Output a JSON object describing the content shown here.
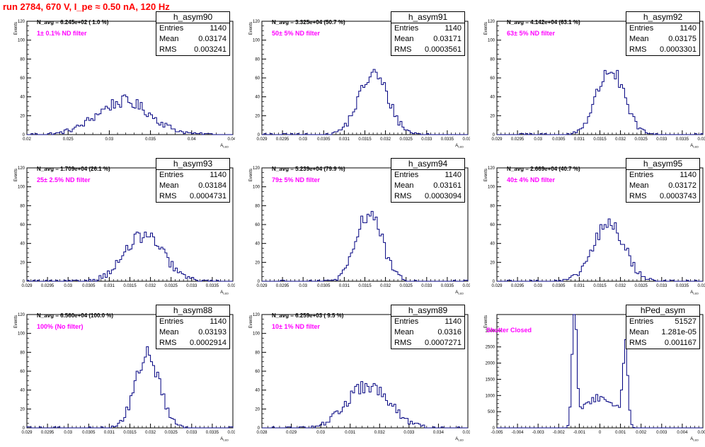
{
  "header": {
    "title": "run 2784,   670 V, I_pe ≈ 0.50 nA, 120 Hz"
  },
  "chart_data": [
    {
      "type": "histogram",
      "title": "h_asym90",
      "ylabel": "Events",
      "xlabel": "A",
      "xlabel_sub": "LED",
      "annotation": "N_avg = 6.245e+02 ( 1.0 %)",
      "filter_label": "1± 0.1% ND filter",
      "stats": {
        "entries_label": "Entries",
        "entries": "1140",
        "mean_label": "Mean",
        "mean": "0.03174",
        "rms_label": "RMS",
        "rms": "0.003241"
      },
      "xlim": [
        0.02,
        0.045
      ],
      "ylim": [
        0,
        120
      ],
      "xticks": [
        "0.02",
        "0.025",
        "0.03",
        "0.035",
        "0.04",
        "0.045"
      ],
      "yticks": [
        "0",
        "20",
        "40",
        "60",
        "80",
        "100",
        "120"
      ],
      "hist": {
        "mean": 0.03174,
        "rms": 0.003241,
        "entries": 1140,
        "nbins": 100
      }
    },
    {
      "type": "histogram",
      "title": "h_asym91",
      "ylabel": "Events",
      "xlabel": "A",
      "xlabel_sub": "LED",
      "annotation": "N_avg = 3.325e+04 (50.7 %)",
      "filter_label": "50± 5% ND filter",
      "stats": {
        "entries_label": "Entries",
        "entries": "1140",
        "mean_label": "Mean",
        "mean": "0.03171",
        "rms_label": "RMS",
        "rms": "0.0003561"
      },
      "xlim": [
        0.029,
        0.034
      ],
      "ylim": [
        0,
        120
      ],
      "xticks": [
        "0.029",
        "0.0295",
        "0.03",
        "0.0305",
        "0.031",
        "0.0315",
        "0.032",
        "0.0325",
        "0.033",
        "0.0335",
        "0.034"
      ],
      "yticks": [
        "0",
        "20",
        "40",
        "60",
        "80",
        "100",
        "120"
      ],
      "hist": {
        "mean": 0.03171,
        "rms": 0.0003561,
        "entries": 1140,
        "nbins": 100
      }
    },
    {
      "type": "histogram",
      "title": "h_asym92",
      "ylabel": "Events",
      "xlabel": "A",
      "xlabel_sub": "LED",
      "annotation": "N_avg = 4.142e+04 (63.1 %)",
      "filter_label": "63± 5% ND filter",
      "stats": {
        "entries_label": "Entries",
        "entries": "1140",
        "mean_label": "Mean",
        "mean": "0.03175",
        "rms_label": "RMS",
        "rms": "0.0003301"
      },
      "xlim": [
        0.029,
        0.034
      ],
      "ylim": [
        0,
        120
      ],
      "xticks": [
        "0.029",
        "0.0295",
        "0.03",
        "0.0305",
        "0.031",
        "0.0315",
        "0.032",
        "0.0325",
        "0.033",
        "0.0335",
        "0.034"
      ],
      "yticks": [
        "0",
        "20",
        "40",
        "60",
        "80",
        "100",
        "120"
      ],
      "hist": {
        "mean": 0.03175,
        "rms": 0.0003301,
        "entries": 1140,
        "nbins": 100
      }
    },
    {
      "type": "histogram",
      "title": "h_asym93",
      "ylabel": "Events",
      "xlabel": "A",
      "xlabel_sub": "LED",
      "annotation": "N_avg = 1.709e+04 (26.1 %)",
      "filter_label": "25± 2.5% ND filter",
      "stats": {
        "entries_label": "Entries",
        "entries": "1140",
        "mean_label": "Mean",
        "mean": "0.03184",
        "rms_label": "RMS",
        "rms": "0.0004731"
      },
      "xlim": [
        0.029,
        0.034
      ],
      "ylim": [
        0,
        120
      ],
      "xticks": [
        "0.029",
        "0.0295",
        "0.03",
        "0.0305",
        "0.031",
        "0.0315",
        "0.032",
        "0.0325",
        "0.033",
        "0.0335",
        "0.034"
      ],
      "yticks": [
        "0",
        "20",
        "40",
        "60",
        "80",
        "100",
        "120"
      ],
      "hist": {
        "mean": 0.03184,
        "rms": 0.0004731,
        "entries": 1140,
        "nbins": 100
      }
    },
    {
      "type": "histogram",
      "title": "h_asym94",
      "ylabel": "Events",
      "xlabel": "A",
      "xlabel_sub": "LED",
      "annotation": "N_avg = 5.239e+04 (79.9 %)",
      "filter_label": "79± 5% ND filter",
      "stats": {
        "entries_label": "Entries",
        "entries": "1140",
        "mean_label": "Mean",
        "mean": "0.03161",
        "rms_label": "RMS",
        "rms": "0.0003094"
      },
      "xlim": [
        0.029,
        0.034
      ],
      "ylim": [
        0,
        120
      ],
      "xticks": [
        "0.029",
        "0.0295",
        "0.03",
        "0.0305",
        "0.031",
        "0.0315",
        "0.032",
        "0.0325",
        "0.033",
        "0.0335",
        "0.034"
      ],
      "yticks": [
        "0",
        "20",
        "40",
        "60",
        "80",
        "100",
        "120"
      ],
      "hist": {
        "mean": 0.03161,
        "rms": 0.0003094,
        "entries": 1140,
        "nbins": 100
      }
    },
    {
      "type": "histogram",
      "title": "h_asym95",
      "ylabel": "Events",
      "xlabel": "A",
      "xlabel_sub": "LED",
      "annotation": "N_avg = 2.669e+04 (40.7 %)",
      "filter_label": "40± 4% ND filter",
      "stats": {
        "entries_label": "Entries",
        "entries": "1140",
        "mean_label": "Mean",
        "mean": "0.03172",
        "rms_label": "RMS",
        "rms": "0.0003743"
      },
      "xlim": [
        0.029,
        0.034
      ],
      "ylim": [
        0,
        120
      ],
      "xticks": [
        "0.029",
        "0.0295",
        "0.03",
        "0.0305",
        "0.031",
        "0.0315",
        "0.032",
        "0.0325",
        "0.033",
        "0.0335",
        "0.034"
      ],
      "yticks": [
        "0",
        "20",
        "40",
        "60",
        "80",
        "100",
        "120"
      ],
      "hist": {
        "mean": 0.03172,
        "rms": 0.0003743,
        "entries": 1140,
        "nbins": 100
      }
    },
    {
      "type": "histogram",
      "title": "h_asym88",
      "ylabel": "Events",
      "xlabel": "A",
      "xlabel_sub": "LED",
      "annotation": "N_avg = 6.560e+04 (100.0 %)",
      "filter_label": "100% (No filter)",
      "stats": {
        "entries_label": "Entries",
        "entries": "1140",
        "mean_label": "Mean",
        "mean": "0.03193",
        "rms_label": "RMS",
        "rms": "0.0002914"
      },
      "xlim": [
        0.029,
        0.034
      ],
      "ylim": [
        0,
        120
      ],
      "xticks": [
        "0.029",
        "0.0295",
        "0.03",
        "0.0305",
        "0.031",
        "0.0315",
        "0.032",
        "0.0325",
        "0.033",
        "0.0335",
        "0.034"
      ],
      "yticks": [
        "0",
        "20",
        "40",
        "60",
        "80",
        "100",
        "120"
      ],
      "hist": {
        "mean": 0.03193,
        "rms": 0.0002914,
        "entries": 1140,
        "nbins": 100
      }
    },
    {
      "type": "histogram",
      "title": "h_asym89",
      "ylabel": "Events",
      "xlabel": "A",
      "xlabel_sub": "LED",
      "annotation": "N_avg = 6.259e+03 ( 9.5 %)",
      "filter_label": "10± 1% ND filter",
      "stats": {
        "entries_label": "Entries",
        "entries": "1140",
        "mean_label": "Mean",
        "mean": "0.0316",
        "rms_label": "RMS",
        "rms": "0.0007271"
      },
      "xlim": [
        0.028,
        0.035
      ],
      "ylim": [
        0,
        120
      ],
      "xticks": [
        "0.028",
        "0.029",
        "0.03",
        "0.031",
        "0.032",
        "0.033",
        "0.034",
        "0.035"
      ],
      "yticks": [
        "0",
        "20",
        "40",
        "60",
        "80",
        "100",
        "120"
      ],
      "hist": {
        "mean": 0.0316,
        "rms": 0.0007271,
        "entries": 1140,
        "nbins": 100
      }
    },
    {
      "type": "histogram",
      "title": "hPed_asym",
      "ylabel": "Events",
      "xlabel": "A",
      "xlabel_sub": "LED",
      "annotation": "",
      "filter_label": "Shutter Closed",
      "stats": {
        "entries_label": "Entries",
        "entries": "51527",
        "mean_label": "Mean",
        "mean": "1.281e-05",
        "rms_label": "RMS",
        "rms": "0.001167"
      },
      "xlim": [
        -0.005,
        0.005
      ],
      "ylim": [
        0,
        3500
      ],
      "xticks": [
        "-0.005",
        "-0.004",
        "-0.003",
        "-0.002",
        "-0.001",
        "0",
        "0.001",
        "0.002",
        "0.003",
        "0.004",
        "0.005"
      ],
      "yticks": [
        "0",
        "500",
        "1000",
        "1500",
        "2000",
        "2500",
        "3000"
      ],
      "hist": {
        "mean": 0.0,
        "rms": 0.00117,
        "entries": 51527,
        "nbins": 100,
        "shape": "bimodal",
        "peak_height": 3350
      }
    }
  ],
  "colors": {
    "title": "#ff0000",
    "filter_label": "#ff00ff",
    "histogram_line": "#000080",
    "axis": "#000000"
  }
}
